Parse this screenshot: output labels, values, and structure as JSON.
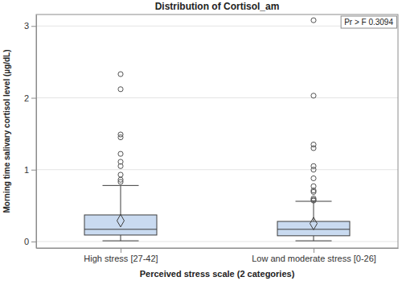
{
  "chart_data": {
    "type": "box",
    "title": "Distribution of Cortisol_am",
    "annotation": "Pr > F 0.3094",
    "x_label": "Perceived stress scale (2 categories)",
    "y_label": "Morning time salivary cortisol level (µg/dL)",
    "categories": [
      "High stress [27-42]",
      "Low and moderate stress [0-26]"
    ],
    "boxes": [
      {
        "min": 0.01,
        "q1": 0.09,
        "median": 0.17,
        "q3": 0.37,
        "max": 0.78,
        "mean": 0.29,
        "outliers": [
          2.33,
          2.12,
          1.49,
          1.45,
          1.22,
          1.11,
          1.05,
          0.93,
          0.86,
          0.83
        ]
      },
      {
        "min": 0.01,
        "q1": 0.08,
        "median": 0.17,
        "q3": 0.28,
        "max": 0.56,
        "mean": 0.25,
        "outliers": [
          3.08,
          2.03,
          1.35,
          1.3,
          1.05,
          1.0,
          0.88,
          0.77,
          0.71,
          0.69,
          0.6,
          0.58,
          0.57
        ]
      }
    ],
    "color": "#c9daf0",
    "marker": "circle",
    "ylim": [
      -0.09,
      3.16
    ],
    "yticks": [
      0,
      1,
      2,
      3
    ],
    "grid": true
  }
}
